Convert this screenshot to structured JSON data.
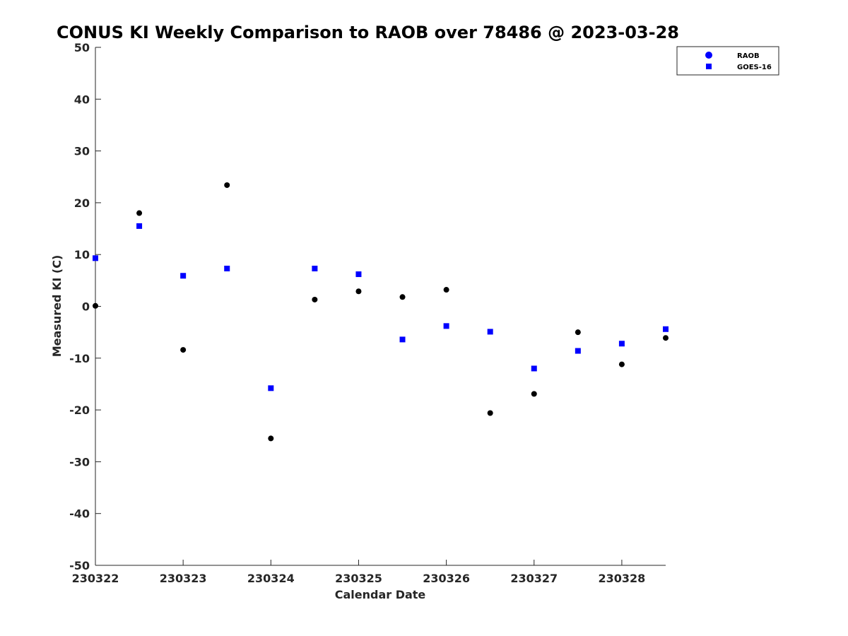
{
  "chart_data": {
    "type": "scatter",
    "title": "CONUS KI Weekly Comparison to RAOB over 78486 @ 2023-03-28",
    "xlabel": "Calendar Date",
    "ylabel": "Measured KI (C)",
    "xlim": [
      "230322",
      "230328 12Z"
    ],
    "ylim": [
      -50,
      50
    ],
    "x_tick_labels": [
      "230322",
      "230323",
      "230324",
      "230325",
      "230326",
      "230327",
      "230328"
    ],
    "y_ticks": [
      50,
      40,
      30,
      20,
      10,
      0,
      -10,
      -20,
      -30,
      -40,
      -50
    ],
    "grid": false,
    "legend": {
      "placement": "top-right",
      "entries": [
        "RAOB",
        "GOES-16"
      ]
    },
    "x": [
      "230322 00Z",
      "230322 12Z",
      "230323 00Z",
      "230323 12Z",
      "230324 00Z",
      "230324 12Z",
      "230325 00Z",
      "230325 12Z",
      "230326 00Z",
      "230326 12Z",
      "230327 00Z",
      "230327 12Z",
      "230328 00Z",
      "230328 12Z"
    ],
    "series": [
      {
        "name": "RAOB",
        "marker": "circle",
        "color": "#000000",
        "values": [
          0.1,
          18.0,
          -8.4,
          23.4,
          -25.5,
          1.3,
          2.9,
          1.8,
          3.2,
          -20.6,
          -16.9,
          -5.0,
          -11.2,
          -6.1
        ]
      },
      {
        "name": "GOES-16",
        "marker": "square",
        "color": "#0000ff",
        "values": [
          9.3,
          15.5,
          5.9,
          7.3,
          -15.8,
          7.3,
          6.2,
          -6.4,
          -3.8,
          -4.9,
          -12.0,
          -8.6,
          -7.2,
          -4.4
        ]
      }
    ]
  }
}
